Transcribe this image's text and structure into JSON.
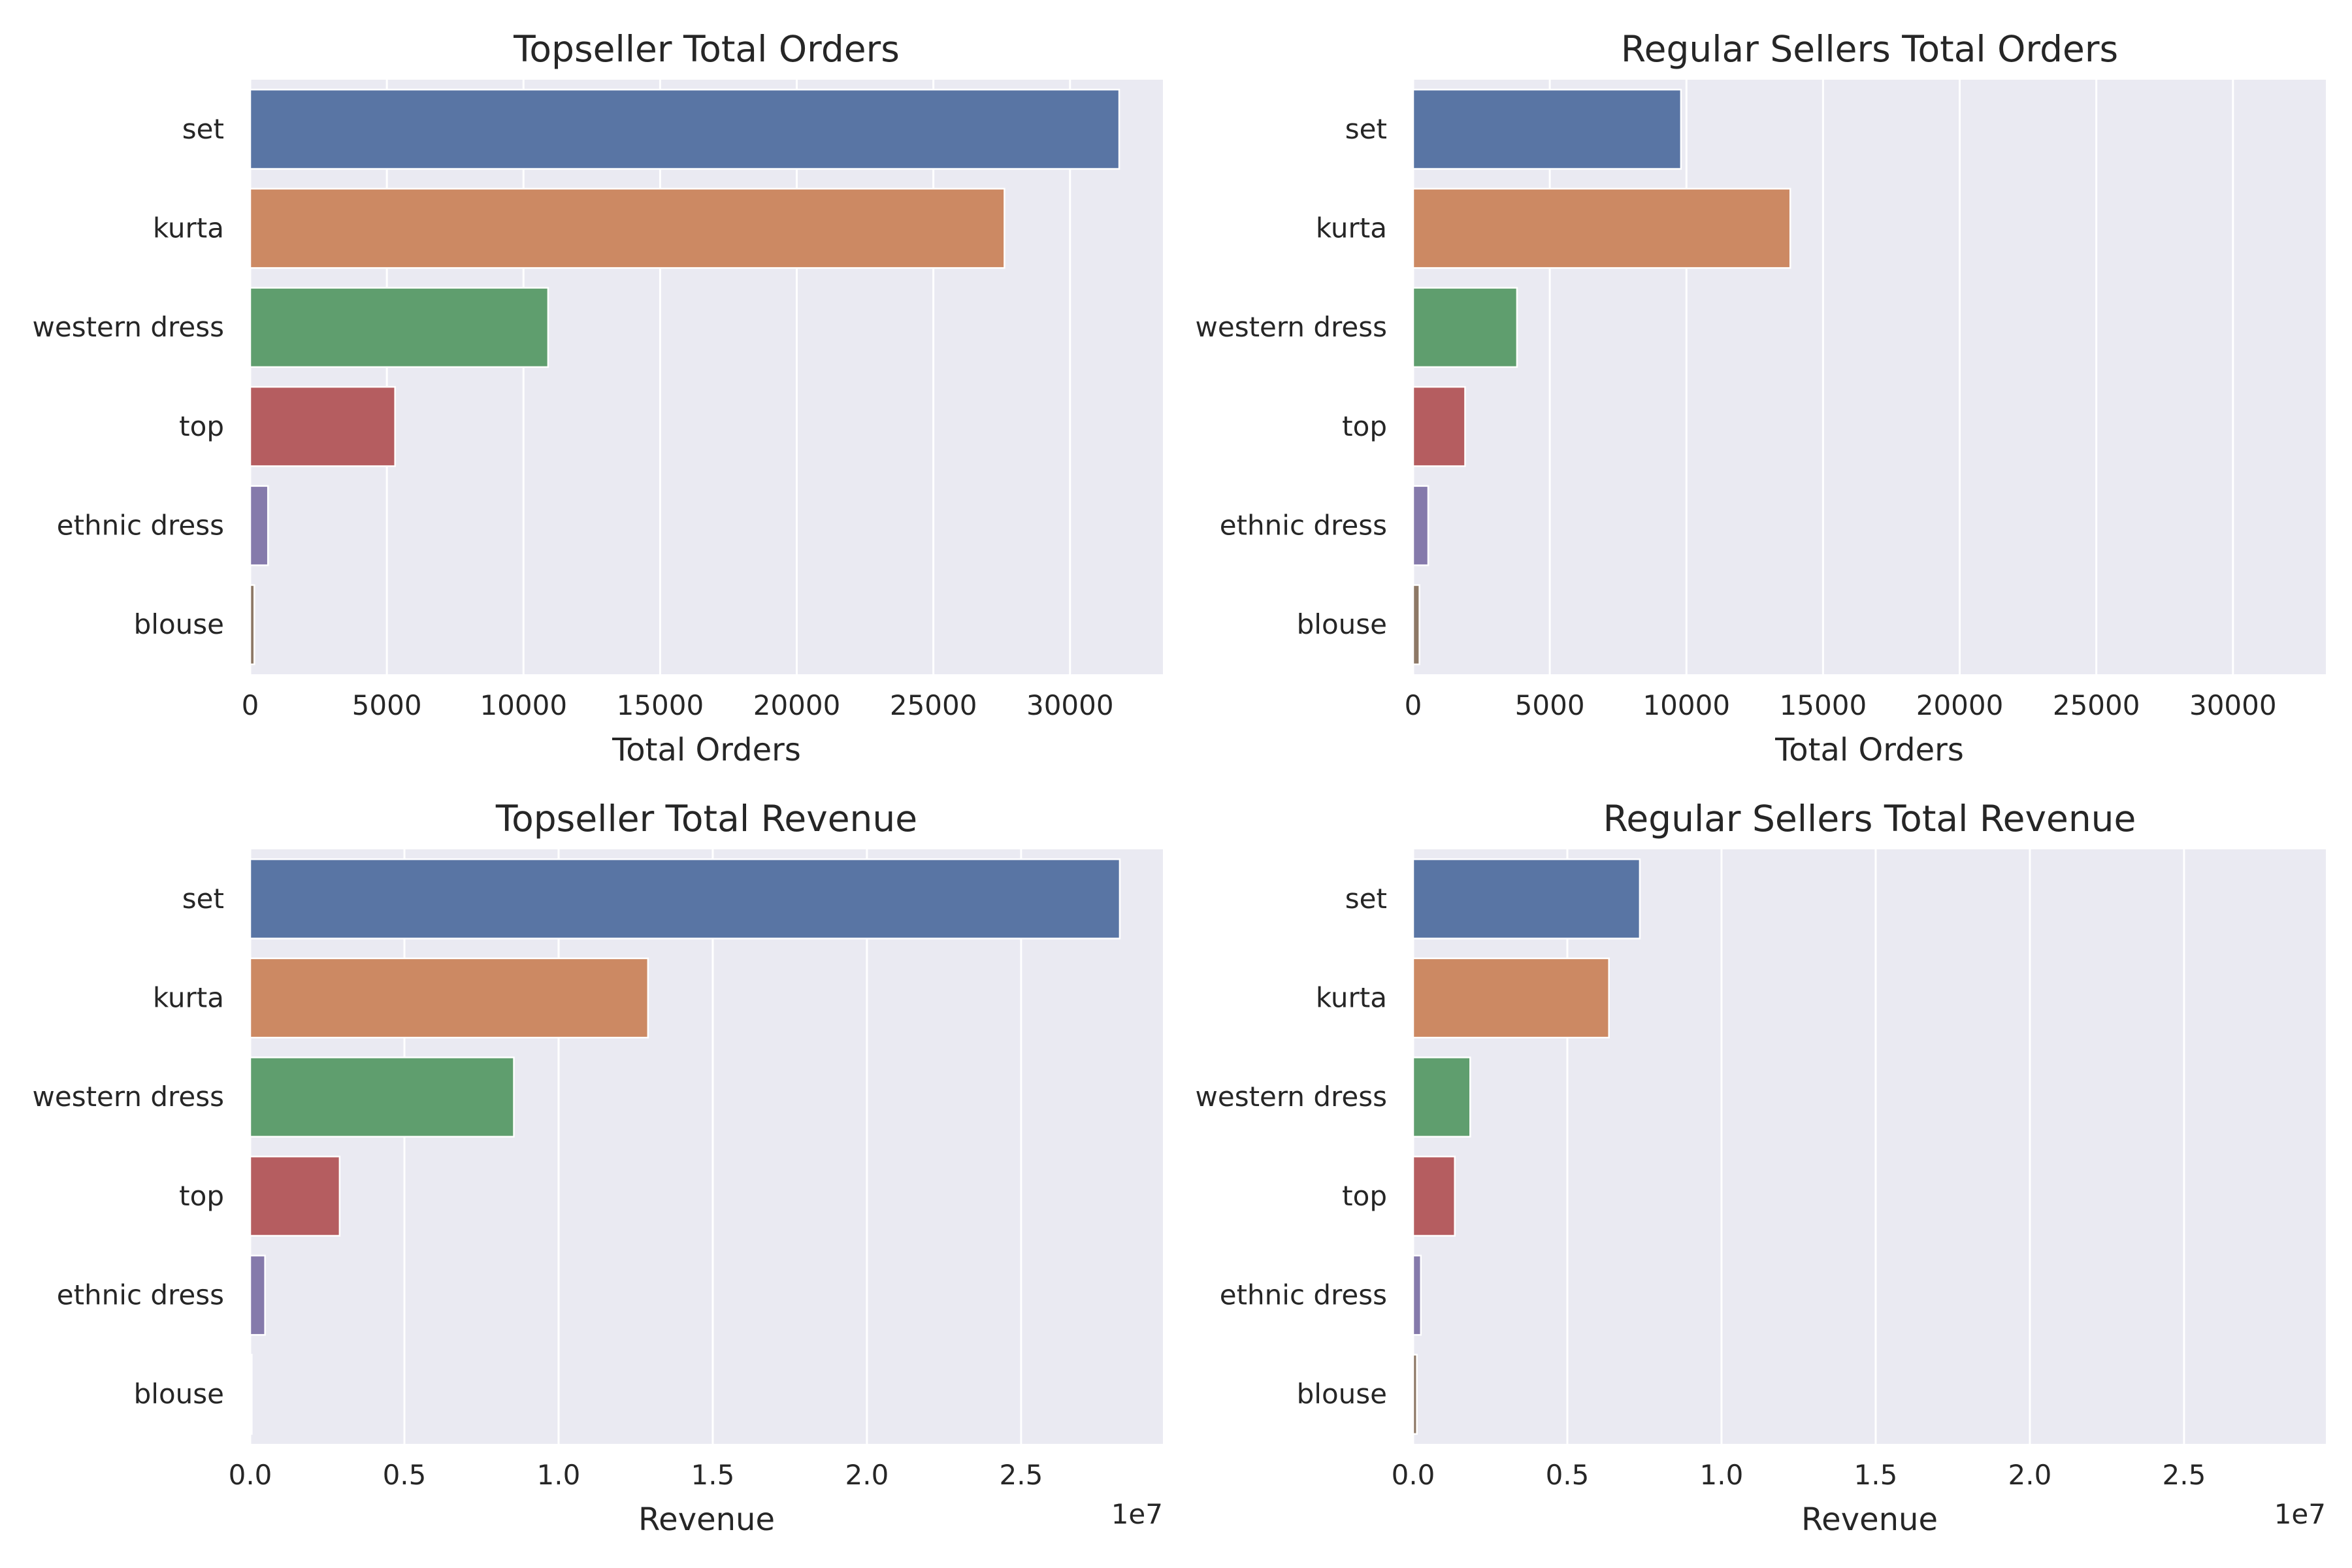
{
  "chart_data": [
    {
      "type": "bar",
      "orientation": "horizontal",
      "title": "Topseller Total Orders",
      "xlabel": "Total Orders",
      "ylabel": "",
      "categories": [
        "set",
        "kurta",
        "western dress",
        "top",
        "ethnic dress",
        "blouse"
      ],
      "values": [
        31800,
        27600,
        10900,
        5300,
        650,
        150
      ],
      "xlim": [
        0,
        33400
      ],
      "xticks": [
        0,
        5000,
        10000,
        15000,
        20000,
        25000,
        30000
      ],
      "xtick_labels": [
        "0",
        "5000",
        "10000",
        "15000",
        "20000",
        "25000",
        "30000"
      ],
      "offset_text": "",
      "grid": true,
      "colors": [
        "#5975a4",
        "#cc8963",
        "#5f9e6e",
        "#b55d60",
        "#857aab",
        "#8d7866"
      ]
    },
    {
      "type": "bar",
      "orientation": "horizontal",
      "title": "Regular Sellers Total Orders",
      "xlabel": "Total Orders",
      "ylabel": "",
      "categories": [
        "set",
        "kurta",
        "western dress",
        "top",
        "ethnic dress",
        "blouse"
      ],
      "values": [
        9800,
        13800,
        3800,
        1900,
        550,
        230
      ],
      "xlim": [
        0,
        33400
      ],
      "xticks": [
        0,
        5000,
        10000,
        15000,
        20000,
        25000,
        30000
      ],
      "xtick_labels": [
        "0",
        "5000",
        "10000",
        "15000",
        "20000",
        "25000",
        "30000"
      ],
      "offset_text": "",
      "grid": true,
      "colors": [
        "#5975a4",
        "#cc8963",
        "#5f9e6e",
        "#b55d60",
        "#857aab",
        "#8d7866"
      ]
    },
    {
      "type": "bar",
      "orientation": "horizontal",
      "title": "Topseller Total Revenue",
      "xlabel": "Revenue",
      "ylabel": "",
      "categories": [
        "set",
        "kurta",
        "western dress",
        "top",
        "ethnic dress",
        "blouse"
      ],
      "values": [
        28200000,
        12900000,
        8550000,
        2900000,
        480000,
        50000
      ],
      "xlim": [
        0,
        29600000
      ],
      "xticks": [
        0,
        5000000,
        10000000,
        15000000,
        20000000,
        25000000
      ],
      "xtick_labels": [
        "0.0",
        "0.5",
        "1.0",
        "1.5",
        "2.0",
        "2.5"
      ],
      "offset_text": "1e7",
      "grid": true,
      "colors": [
        "#5975a4",
        "#cc8963",
        "#5f9e6e",
        "#b55d60",
        "#857aab",
        "#8d7866"
      ]
    },
    {
      "type": "bar",
      "orientation": "horizontal",
      "title": "Regular Sellers Total Revenue",
      "xlabel": "Revenue",
      "ylabel": "",
      "categories": [
        "set",
        "kurta",
        "western dress",
        "top",
        "ethnic dress",
        "blouse"
      ],
      "values": [
        7350000,
        6350000,
        1850000,
        1350000,
        250000,
        120000
      ],
      "xlim": [
        0,
        29600000
      ],
      "xticks": [
        0,
        5000000,
        10000000,
        15000000,
        20000000,
        25000000
      ],
      "xtick_labels": [
        "0.0",
        "0.5",
        "1.0",
        "1.5",
        "2.0",
        "2.5"
      ],
      "offset_text": "1e7",
      "grid": true,
      "colors": [
        "#5975a4",
        "#cc8963",
        "#5f9e6e",
        "#b55d60",
        "#857aab",
        "#8d7866"
      ]
    }
  ]
}
